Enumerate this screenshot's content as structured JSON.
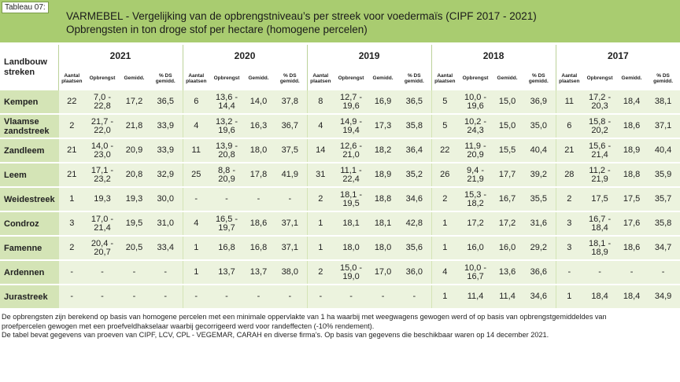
{
  "header": {
    "tag": "Tableau 07:",
    "title_line1": "VARMEBEL - Vergelijking van de opbrengstniveau’s per streek voor voedermaïs (CIPF 2017 - 2021)",
    "title_line2": "Opbrengsten in ton droge stof per hectare (homogene percelen)"
  },
  "table": {
    "corner_label_line1": "Landbouw",
    "corner_label_line2": "streken",
    "years": [
      "2021",
      "2020",
      "2019",
      "2018",
      "2017"
    ],
    "subheaders": [
      {
        "line1": "Aantal",
        "line2": "plaatsen"
      },
      {
        "line1": "Opbrengst",
        "line2": ""
      },
      {
        "line1": "Gemidd.",
        "line2": ""
      },
      {
        "line1": "% DS",
        "line2": "gemidd."
      }
    ],
    "rows": [
      {
        "region": [
          "Kempen"
        ],
        "values": [
          [
            "22",
            "7,0 -\n22,8",
            "17,2",
            "36,5"
          ],
          [
            "6",
            "13,6 -\n14,4",
            "14,0",
            "37,8"
          ],
          [
            "8",
            "12,7 -\n19,6",
            "16,9",
            "36,5"
          ],
          [
            "5",
            "10,0 -\n19,6",
            "15,0",
            "36,9"
          ],
          [
            "11",
            "17,2 -\n20,3",
            "18,4",
            "38,1"
          ]
        ]
      },
      {
        "region": [
          "Vlaamse",
          "zandstreek"
        ],
        "values": [
          [
            "2",
            "21,7 -\n22,0",
            "21,8",
            "33,9"
          ],
          [
            "4",
            "13,2 -\n19,6",
            "16,3",
            "36,7"
          ],
          [
            "4",
            "14,9 -\n19,4",
            "17,3",
            "35,8"
          ],
          [
            "5",
            "10,2 -\n24,3",
            "15,0",
            "35,0"
          ],
          [
            "6",
            "15,8 -\n20,2",
            "18,6",
            "37,1"
          ]
        ]
      },
      {
        "region": [
          "Zandleem"
        ],
        "values": [
          [
            "21",
            "14,0 -\n23,0",
            "20,9",
            "33,9"
          ],
          [
            "11",
            "13,9 -\n20,8",
            "18,0",
            "37,5"
          ],
          [
            "14",
            "12,6 -\n21,0",
            "18,2",
            "36,4"
          ],
          [
            "22",
            "11,9 -\n20,9",
            "15,5",
            "40,4"
          ],
          [
            "21",
            "15,6 -\n21,4",
            "18,9",
            "40,4"
          ]
        ]
      },
      {
        "region": [
          "Leem"
        ],
        "values": [
          [
            "21",
            "17,1 -\n23,2",
            "20,8",
            "32,9"
          ],
          [
            "25",
            "8,8 -\n20,9",
            "17,8",
            "41,9"
          ],
          [
            "31",
            "11,1 -\n22,4",
            "18,9",
            "35,2"
          ],
          [
            "26",
            "9,4 -\n21,9",
            "17,7",
            "39,2"
          ],
          [
            "28",
            "11,2 -\n21,9",
            "18,8",
            "35,9"
          ]
        ]
      },
      {
        "region": [
          "Weidestreek"
        ],
        "values": [
          [
            "1",
            "19,3",
            "19,3",
            "30,0"
          ],
          [
            "-",
            "-",
            "-",
            "-"
          ],
          [
            "2",
            "18,1 -\n19,5",
            "18,8",
            "34,6"
          ],
          [
            "2",
            "15,3 -\n18,2",
            "16,7",
            "35,5"
          ],
          [
            "2",
            "17,5",
            "17,5",
            "35,7"
          ]
        ]
      },
      {
        "region": [
          "Condroz"
        ],
        "values": [
          [
            "3",
            "17,0 -\n21,4",
            "19,5",
            "31,0"
          ],
          [
            "4",
            "16,5 -\n19,7",
            "18,6",
            "37,1"
          ],
          [
            "1",
            "18,1",
            "18,1",
            "42,8"
          ],
          [
            "1",
            "17,2",
            "17,2",
            "31,6"
          ],
          [
            "3",
            "16,7 -\n18,4",
            "17,6",
            "35,8"
          ]
        ]
      },
      {
        "region": [
          "Famenne"
        ],
        "values": [
          [
            "2",
            "20,4 -\n20,7",
            "20,5",
            "33,4"
          ],
          [
            "1",
            "16,8",
            "16,8",
            "37,1"
          ],
          [
            "1",
            "18,0",
            "18,0",
            "35,6"
          ],
          [
            "1",
            "16,0",
            "16,0",
            "29,2"
          ],
          [
            "3",
            "18,1 -\n18,9",
            "18,6",
            "34,7"
          ]
        ]
      },
      {
        "region": [
          "Ardennen"
        ],
        "values": [
          [
            "-",
            "-",
            "-",
            "-"
          ],
          [
            "1",
            "13,7",
            "13,7",
            "38,0"
          ],
          [
            "2",
            "15,0 -\n19,0",
            "17,0",
            "36,0"
          ],
          [
            "4",
            "10,0 -\n16,7",
            "13,6",
            "36,6"
          ],
          [
            "-",
            "-",
            "-",
            "-"
          ]
        ]
      },
      {
        "region": [
          "Jurastreek"
        ],
        "values": [
          [
            "-",
            "-",
            "-",
            "-"
          ],
          [
            "-",
            "-",
            "-",
            "-"
          ],
          [
            "-",
            "-",
            "-",
            "-"
          ],
          [
            "1",
            "11,4",
            "11,4",
            "34,6"
          ],
          [
            "1",
            "18,4",
            "18,4",
            "34,9"
          ]
        ]
      }
    ]
  },
  "footnote": {
    "line1": "De opbrengsten zijn berekend op basis van homogene percelen met een minimale oppervlakte van 1 ha waarbij met weegwagens gewogen werd of op basis van opbrengstgemiddeldes van",
    "line2": "proefpercelen gewogen met een proefveldhakselaar waarbij gecorrigeerd werd voor randeffecten (-10% rendement).",
    "line3": "De tabel bevat gegevens van proeven van CIPF, LCV, CPL - VEGEMAR, CARAH en diverse firma’s. Op basis van gegevens die beschikbaar waren op 14 december 2021."
  }
}
